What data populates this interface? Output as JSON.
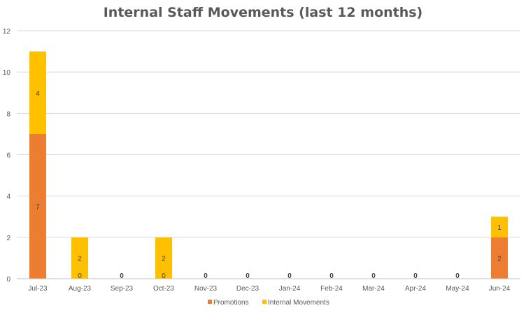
{
  "chart_data": {
    "type": "bar",
    "stacked": true,
    "title": "Internal Staff Movements (last 12 months)",
    "xlabel": "",
    "ylabel": "",
    "categories": [
      "Jul-23",
      "Aug-23",
      "Sep-23",
      "Oct-23",
      "Nov-23",
      "Dec-23",
      "Jan-24",
      "Feb-24",
      "Mar-24",
      "Apr-24",
      "May-24",
      "Jun-24"
    ],
    "series": [
      {
        "name": "Promotions",
        "color": "#ED7D31",
        "values": [
          7,
          0,
          0,
          0,
          0,
          0,
          0,
          0,
          0,
          0,
          0,
          2
        ]
      },
      {
        "name": "Internal Movements",
        "color": "#FFC000",
        "values": [
          4,
          2,
          0,
          2,
          0,
          0,
          0,
          0,
          0,
          0,
          0,
          1
        ]
      }
    ],
    "ylim": [
      0,
      12
    ],
    "yticks": [
      0,
      2,
      4,
      6,
      8,
      10,
      12
    ],
    "grid": true,
    "legend": "bottom"
  }
}
